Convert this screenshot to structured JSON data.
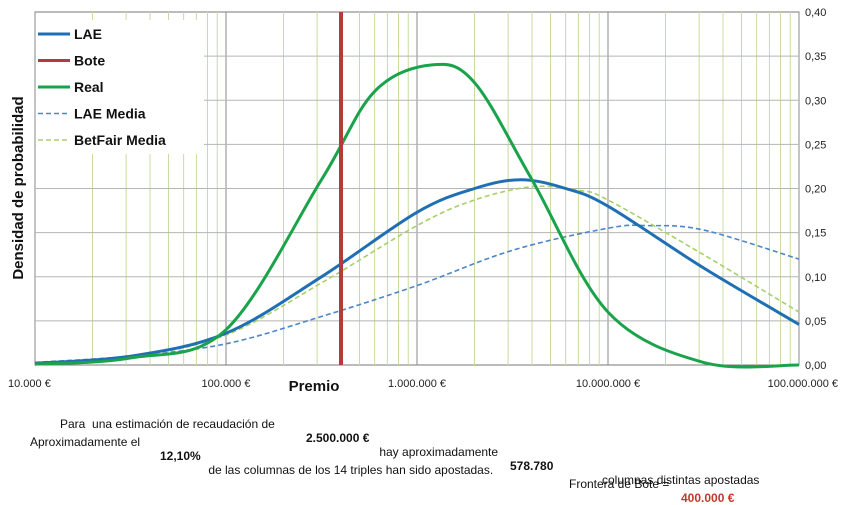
{
  "chart_data": {
    "type": "line",
    "xlabel": "Premio",
    "ylabel": "Densidad de probabilidad",
    "x_scale": "log",
    "xlim": [
      10000,
      100000000
    ],
    "ylim": [
      0,
      0.4
    ],
    "x_ticks": [
      "10.000 €",
      "100.000 €",
      "1.000.000 €",
      "10.000.000 €",
      "100.000.000 €"
    ],
    "y_ticks": [
      "0,00",
      "0,05",
      "0,10",
      "0,15",
      "0,20",
      "0,25",
      "0,30",
      "0,35",
      "0,40"
    ],
    "grid": true,
    "legend_position": "top-left",
    "series": [
      {
        "name": "LAE",
        "color": "#1f6fb5",
        "style": "solid",
        "x": [
          10000,
          31623,
          100000,
          316228,
          1000000,
          2000000,
          3500000,
          6000000,
          10000000,
          31623000,
          100000000
        ],
        "y": [
          0.002,
          0.01,
          0.036,
          0.1,
          0.173,
          0.2,
          0.21,
          0.2,
          0.18,
          0.11,
          0.046
        ]
      },
      {
        "name": "Bote",
        "color": "#b23b3b",
        "style": "solid",
        "x": [
          400000,
          400000
        ],
        "y": [
          0,
          0.4
        ]
      },
      {
        "name": "Real",
        "color": "#1aa34a",
        "style": "solid",
        "x": [
          10000,
          31623,
          100000,
          316228,
          600000,
          1200000,
          2000000,
          4000000,
          10000000,
          31623000,
          100000000
        ],
        "y": [
          0.001,
          0.008,
          0.04,
          0.21,
          0.31,
          0.34,
          0.32,
          0.21,
          0.06,
          0.003,
          0.0
        ]
      },
      {
        "name": "LAE Media",
        "color": "#4a86c8",
        "style": "dashed",
        "x": [
          10000,
          31623,
          100000,
          316228,
          1000000,
          3162000,
          10000000,
          16000000,
          31623000,
          100000000
        ],
        "y": [
          0.003,
          0.01,
          0.024,
          0.055,
          0.09,
          0.13,
          0.155,
          0.158,
          0.153,
          0.12
        ]
      },
      {
        "name": "BetFair Media",
        "color": "#a8cf6a",
        "style": "dashed",
        "x": [
          10000,
          31623,
          100000,
          316228,
          1000000,
          2000000,
          4000000,
          7000000,
          10000000,
          31623000,
          100000000
        ],
        "y": [
          0.002,
          0.009,
          0.034,
          0.093,
          0.158,
          0.187,
          0.202,
          0.198,
          0.187,
          0.125,
          0.06
        ]
      }
    ]
  },
  "footer": {
    "line1": {
      "a": "Para  una estimación de recaudación de  ",
      "amount": "2.500.000 €",
      "b": " hay aproximadamente",
      "columns": "578.780",
      "c": "columnas distintas apostadas"
    },
    "line2": {
      "a": "Aproximadamente el  ",
      "pct": "12,10%",
      "b": " de las columnas de los 14 triples han sido apostadas.",
      "c": "Frontera de Bote = ",
      "bote": "400.000 €"
    }
  }
}
